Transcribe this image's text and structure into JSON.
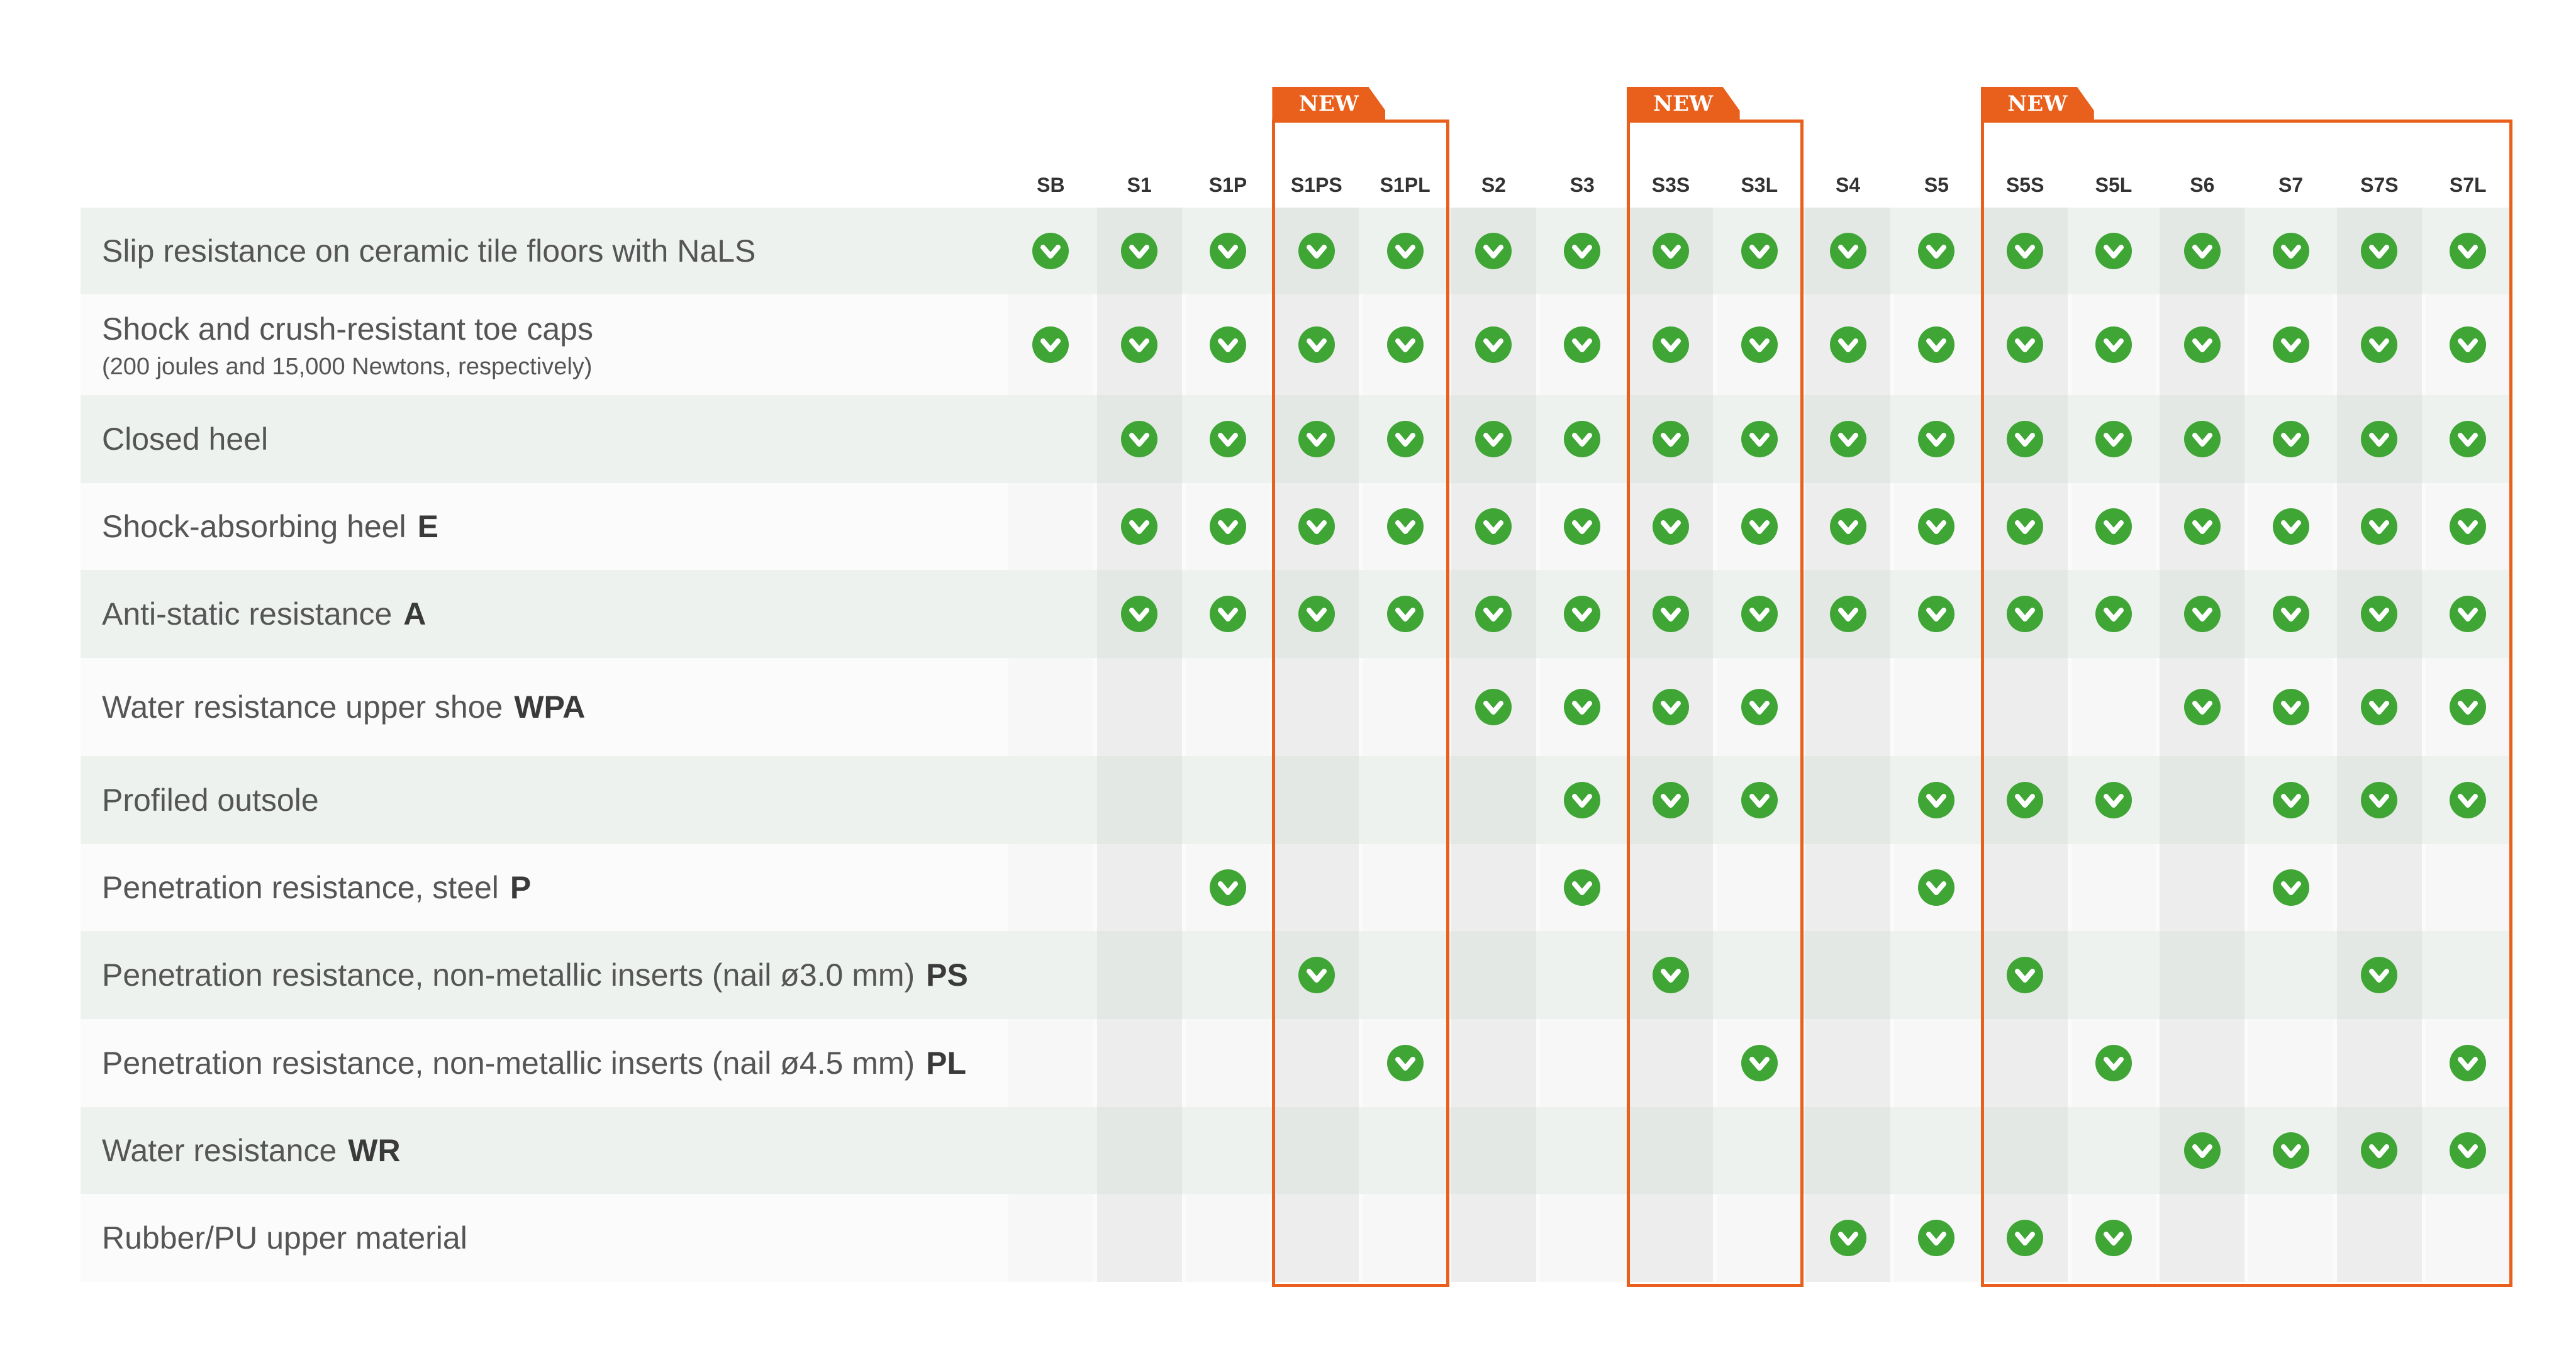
{
  "colors": {
    "accent": "#e8601c",
    "check": "#3fa535",
    "row_band": "#eef2ef",
    "row_plain": "#fbfbfb"
  },
  "new_label": "NEW",
  "columns": [
    "SB",
    "S1",
    "S1P",
    "S1PS",
    "S1PL",
    "S2",
    "S3",
    "S3S",
    "S3L",
    "S4",
    "S5",
    "S5S",
    "S5L",
    "S6",
    "S7",
    "S7S",
    "S7L"
  ],
  "new_groups": [
    {
      "columns": [
        "S1PS",
        "S1PL"
      ]
    },
    {
      "columns": [
        "S3S",
        "S3L"
      ]
    },
    {
      "columns": [
        "S5S",
        "S5L",
        "S6",
        "S7",
        "S7S",
        "S7L"
      ]
    }
  ],
  "rows": [
    {
      "label": "Slip resistance on ceramic tile floors with NaLS",
      "code": "",
      "sub": "",
      "checks": [
        "SB",
        "S1",
        "S1P",
        "S1PS",
        "S1PL",
        "S2",
        "S3",
        "S3S",
        "S3L",
        "S4",
        "S5",
        "S5S",
        "S5L",
        "S6",
        "S7",
        "S7S",
        "S7L"
      ]
    },
    {
      "label": "Shock and crush-resistant toe caps",
      "code": "",
      "sub": "(200 joules and 15,000 Newtons, respectively)",
      "checks": [
        "SB",
        "S1",
        "S1P",
        "S1PS",
        "S1PL",
        "S2",
        "S3",
        "S3S",
        "S3L",
        "S4",
        "S5",
        "S5S",
        "S5L",
        "S6",
        "S7",
        "S7S",
        "S7L"
      ]
    },
    {
      "label": "Closed heel",
      "code": "",
      "sub": "",
      "checks": [
        "S1",
        "S1P",
        "S1PS",
        "S1PL",
        "S2",
        "S3",
        "S3S",
        "S3L",
        "S4",
        "S5",
        "S5S",
        "S5L",
        "S6",
        "S7",
        "S7S",
        "S7L"
      ]
    },
    {
      "label": "Shock-absorbing heel",
      "code": "E",
      "sub": "",
      "checks": [
        "S1",
        "S1P",
        "S1PS",
        "S1PL",
        "S2",
        "S3",
        "S3S",
        "S3L",
        "S4",
        "S5",
        "S5S",
        "S5L",
        "S6",
        "S7",
        "S7S",
        "S7L"
      ]
    },
    {
      "label": "Anti-static resistance",
      "code": "A",
      "sub": "",
      "checks": [
        "S1",
        "S1P",
        "S1PS",
        "S1PL",
        "S2",
        "S3",
        "S3S",
        "S3L",
        "S4",
        "S5",
        "S5S",
        "S5L",
        "S6",
        "S7",
        "S7S",
        "S7L"
      ]
    },
    {
      "label": "Water resistance upper shoe",
      "code": "WPA",
      "sub": "",
      "checks": [
        "S2",
        "S3",
        "S3S",
        "S3L",
        "S6",
        "S7",
        "S7S",
        "S7L"
      ]
    },
    {
      "label": "Profiled outsole",
      "code": "",
      "sub": "",
      "checks": [
        "S3",
        "S3S",
        "S3L",
        "S5",
        "S5S",
        "S5L",
        "S7",
        "S7S",
        "S7L"
      ]
    },
    {
      "label": "Penetration resistance, steel",
      "code": "P",
      "sub": "",
      "checks": [
        "S1P",
        "S3",
        "S5",
        "S7"
      ]
    },
    {
      "label": "Penetration resistance, non-metallic inserts (nail ø3.0 mm)",
      "code": "PS",
      "sub": "",
      "checks": [
        "S1PS",
        "S3S",
        "S5S",
        "S7S"
      ]
    },
    {
      "label": "Penetration resistance, non-metallic inserts (nail ø4.5 mm)",
      "code": "PL",
      "sub": "",
      "checks": [
        "S1PL",
        "S3L",
        "S5L",
        "S7L"
      ]
    },
    {
      "label": "Water resistance",
      "code": "WR",
      "sub": "",
      "checks": [
        "S6",
        "S7",
        "S7S",
        "S7L"
      ]
    },
    {
      "label": "Rubber/PU upper material",
      "code": "",
      "sub": "",
      "checks": [
        "S4",
        "S5",
        "S5S",
        "S5L"
      ]
    }
  ]
}
